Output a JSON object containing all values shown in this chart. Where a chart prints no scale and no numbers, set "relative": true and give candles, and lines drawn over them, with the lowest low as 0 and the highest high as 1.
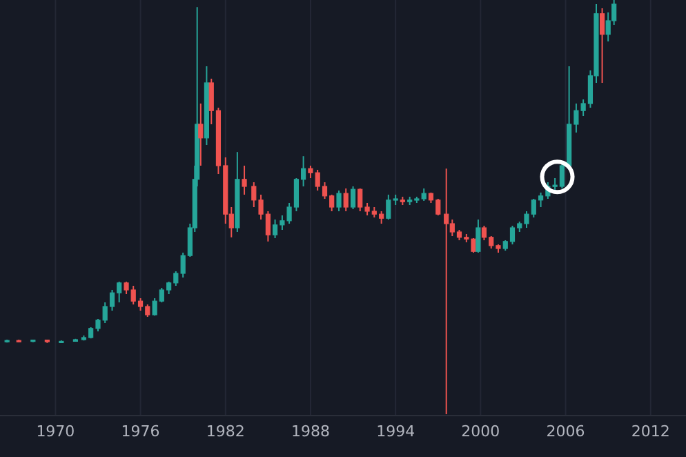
{
  "chart_data": {
    "type": "candlestick",
    "relative": true,
    "grid": "x",
    "xlim": [
      "1966-02",
      "2014-07"
    ],
    "xticks": [
      "1970",
      "1976",
      "1982",
      "1988",
      "1994",
      "2000",
      "2006",
      "2012"
    ],
    "x": [
      "1966-08",
      "1967-06",
      "1968-06",
      "1969-06",
      "1970-06",
      "1971-06",
      "1972-01",
      "1972-07",
      "1973-01",
      "1973-07",
      "1974-01",
      "1974-07",
      "1975-01",
      "1975-07",
      "1976-01",
      "1976-07",
      "1977-01",
      "1977-07",
      "1978-01",
      "1978-07",
      "1979-01",
      "1979-07",
      "1979-11",
      "1980-01",
      "1980-04",
      "1980-09",
      "1981-01",
      "1981-07",
      "1982-01",
      "1982-06",
      "1982-11",
      "1983-05",
      "1984-01",
      "1984-07",
      "1985-01",
      "1985-07",
      "1986-01",
      "1986-07",
      "1987-01",
      "1987-07",
      "1988-01",
      "1988-07",
      "1989-01",
      "1989-07",
      "1990-01",
      "1990-07",
      "1991-01",
      "1991-07",
      "1992-01",
      "1992-07",
      "1993-01",
      "1993-07",
      "1994-01",
      "1994-07",
      "1995-01",
      "1995-07",
      "1996-01",
      "1996-07",
      "1997-01",
      "1997-08",
      "1998-01",
      "1998-07",
      "1999-01",
      "1999-07",
      "1999-11",
      "2000-04",
      "2000-10",
      "2001-04",
      "2001-10",
      "2002-04",
      "2002-10",
      "2003-04",
      "2003-10",
      "2004-04",
      "2004-10",
      "2005-04",
      "2005-10",
      "2006-04",
      "2006-10",
      "2007-04",
      "2007-10",
      "2008-03",
      "2008-08",
      "2009-01",
      "2009-06"
    ],
    "ohlc": [
      [
        0.175,
        0.18,
        0.173,
        0.178
      ],
      [
        0.178,
        0.18,
        0.174,
        0.176
      ],
      [
        0.176,
        0.18,
        0.174,
        0.179
      ],
      [
        0.179,
        0.18,
        0.172,
        0.175
      ],
      [
        0.175,
        0.178,
        0.172,
        0.176
      ],
      [
        0.176,
        0.182,
        0.175,
        0.18
      ],
      [
        0.18,
        0.19,
        0.178,
        0.185
      ],
      [
        0.185,
        0.21,
        0.183,
        0.207
      ],
      [
        0.207,
        0.23,
        0.2,
        0.227
      ],
      [
        0.227,
        0.27,
        0.22,
        0.26
      ],
      [
        0.26,
        0.3,
        0.25,
        0.293
      ],
      [
        0.293,
        0.32,
        0.27,
        0.317
      ],
      [
        0.317,
        0.32,
        0.29,
        0.3
      ],
      [
        0.3,
        0.31,
        0.265,
        0.273
      ],
      [
        0.273,
        0.28,
        0.25,
        0.26
      ],
      [
        0.26,
        0.265,
        0.235,
        0.24
      ],
      [
        0.24,
        0.28,
        0.238,
        0.273
      ],
      [
        0.273,
        0.305,
        0.27,
        0.3
      ],
      [
        0.3,
        0.32,
        0.29,
        0.317
      ],
      [
        0.317,
        0.345,
        0.31,
        0.34
      ],
      [
        0.34,
        0.39,
        0.33,
        0.383
      ],
      [
        0.383,
        0.46,
        0.38,
        0.45
      ],
      [
        0.45,
        0.6,
        0.44,
        0.567
      ],
      [
        0.567,
        0.983,
        0.55,
        0.7
      ],
      [
        0.7,
        0.75,
        0.6,
        0.667
      ],
      [
        0.667,
        0.84,
        0.65,
        0.8
      ],
      [
        0.8,
        0.81,
        0.7,
        0.733
      ],
      [
        0.733,
        0.74,
        0.58,
        0.6
      ],
      [
        0.6,
        0.62,
        0.46,
        0.483
      ],
      [
        0.483,
        0.5,
        0.427,
        0.45
      ],
      [
        0.45,
        0.633,
        0.44,
        0.567
      ],
      [
        0.567,
        0.6,
        0.53,
        0.55
      ],
      [
        0.55,
        0.56,
        0.5,
        0.517
      ],
      [
        0.517,
        0.53,
        0.47,
        0.483
      ],
      [
        0.483,
        0.49,
        0.417,
        0.433
      ],
      [
        0.433,
        0.47,
        0.425,
        0.457
      ],
      [
        0.457,
        0.48,
        0.445,
        0.467
      ],
      [
        0.467,
        0.51,
        0.46,
        0.5
      ],
      [
        0.5,
        0.57,
        0.49,
        0.567
      ],
      [
        0.567,
        0.623,
        0.55,
        0.593
      ],
      [
        0.593,
        0.6,
        0.57,
        0.583
      ],
      [
        0.583,
        0.59,
        0.54,
        0.55
      ],
      [
        0.55,
        0.56,
        0.52,
        0.527
      ],
      [
        0.527,
        0.53,
        0.49,
        0.5
      ],
      [
        0.5,
        0.54,
        0.49,
        0.533
      ],
      [
        0.533,
        0.545,
        0.49,
        0.5
      ],
      [
        0.5,
        0.55,
        0.495,
        0.543
      ],
      [
        0.543,
        0.545,
        0.49,
        0.5
      ],
      [
        0.5,
        0.51,
        0.48,
        0.49
      ],
      [
        0.49,
        0.5,
        0.475,
        0.483
      ],
      [
        0.483,
        0.49,
        0.46,
        0.473
      ],
      [
        0.473,
        0.53,
        0.47,
        0.517
      ],
      [
        0.517,
        0.53,
        0.505,
        0.52
      ],
      [
        0.517,
        0.525,
        0.505,
        0.513
      ],
      [
        0.513,
        0.525,
        0.505,
        0.517
      ],
      [
        0.517,
        0.525,
        0.51,
        0.52
      ],
      [
        0.52,
        0.545,
        0.515,
        0.533
      ],
      [
        0.533,
        0.535,
        0.51,
        0.517
      ],
      [
        0.517,
        0.52,
        0.48,
        0.483
      ],
      [
        0.483,
        0.593,
        0,
        0.46
      ],
      [
        0.46,
        0.47,
        0.43,
        0.44
      ],
      [
        0.44,
        0.445,
        0.42,
        0.427
      ],
      [
        0.427,
        0.435,
        0.415,
        0.423
      ],
      [
        0.423,
        0.425,
        0.39,
        0.393
      ],
      [
        0.393,
        0.47,
        0.39,
        0.45
      ],
      [
        0.45,
        0.455,
        0.42,
        0.427
      ],
      [
        0.427,
        0.43,
        0.4,
        0.407
      ],
      [
        0.407,
        0.41,
        0.39,
        0.4
      ],
      [
        0.4,
        0.42,
        0.395,
        0.417
      ],
      [
        0.417,
        0.455,
        0.41,
        0.45
      ],
      [
        0.45,
        0.465,
        0.44,
        0.46
      ],
      [
        0.46,
        0.49,
        0.45,
        0.483
      ],
      [
        0.483,
        0.52,
        0.475,
        0.517
      ],
      [
        0.517,
        0.535,
        0.5,
        0.527
      ],
      [
        0.527,
        0.56,
        0.52,
        0.55
      ],
      [
        0.55,
        0.57,
        0.54,
        0.553
      ],
      [
        0.55,
        0.61,
        0.545,
        0.6
      ],
      [
        0.6,
        0.84,
        0.59,
        0.7
      ],
      [
        0.7,
        0.75,
        0.68,
        0.733
      ],
      [
        0.733,
        0.76,
        0.72,
        0.75
      ],
      [
        0.75,
        0.83,
        0.74,
        0.817
      ],
      [
        0.817,
        0.99,
        0.8,
        0.967
      ],
      [
        0.967,
        0.98,
        0.8,
        0.917
      ],
      [
        0.917,
        0.97,
        0.9,
        0.95
      ],
      [
        0.95,
        1,
        0.94,
        0.99
      ]
    ]
  }
}
